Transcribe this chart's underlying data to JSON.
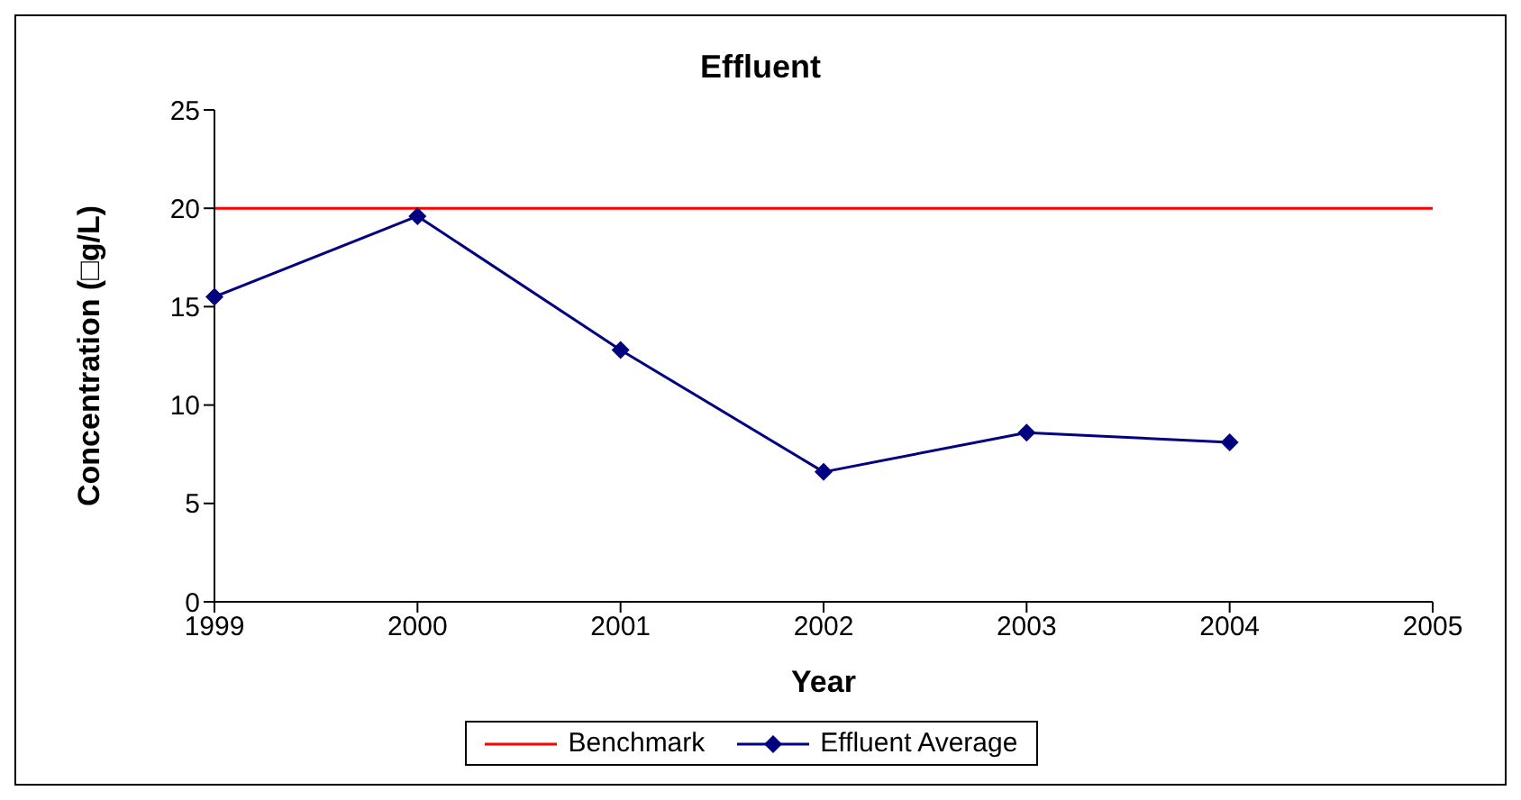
{
  "chart_data": {
    "type": "line",
    "title": "Effluent",
    "xlabel": "Year",
    "ylabel": "Concentration  (□g/L)",
    "categories": [
      "1999",
      "2000",
      "2001",
      "2002",
      "2003",
      "2004",
      "2005"
    ],
    "series": [
      {
        "name": "Effluent Average",
        "color": "#000080",
        "marker": "diamond",
        "values": [
          15.5,
          19.6,
          12.8,
          6.6,
          8.6,
          8.1,
          null
        ]
      },
      {
        "name": "Benchmark",
        "color": "#ff0000",
        "marker": "none",
        "values": [
          20,
          20,
          20,
          20,
          20,
          20,
          20
        ]
      }
    ],
    "ylim": [
      0,
      25
    ],
    "yticks": [
      0,
      5,
      10,
      15,
      20,
      25
    ],
    "grid": false,
    "legend": "bottom"
  }
}
